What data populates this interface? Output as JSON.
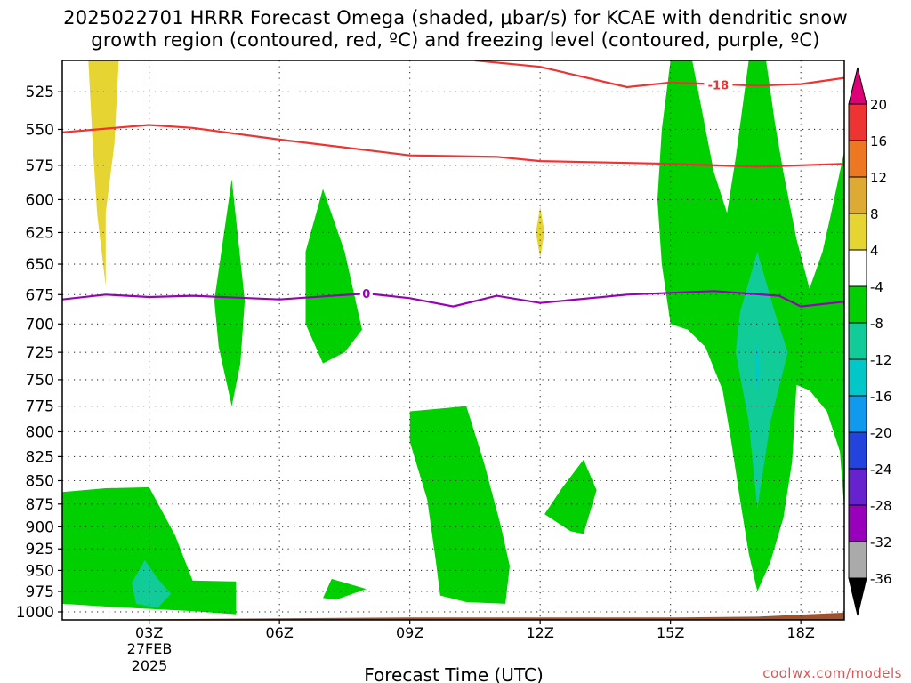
{
  "title_lines": [
    "2025022701 HRRR Forecast Omega (shaded, μbar/s) for KCAE with dendritic snow",
    "growth region (contoured, red, ºC) and freezing level (contoured, purple, ºC)"
  ],
  "xlabel": "Forecast Time (UTC)",
  "credit": "coolwx.com/models",
  "date_lines": [
    "27FEB",
    "2025"
  ],
  "colorbar": {
    "ticks": [
      "20",
      "16",
      "12",
      "8",
      "4",
      "-4",
      "-8",
      "-12",
      "-16",
      "-20",
      "-24",
      "-28",
      "-32",
      "-36"
    ],
    "colors": [
      "#dd0077",
      "#ee3333",
      "#ee7722",
      "#ddaa33",
      "#e6d433",
      "#ffffff",
      "#00d000",
      "#11cc99",
      "#00c8c8",
      "#1199ee",
      "#2244dd",
      "#6622cc",
      "#9900bb",
      "#aaaaaa",
      "#000000"
    ]
  },
  "chart_data": {
    "type": "contour",
    "x_label": "Forecast Time (UTC)",
    "x_ticks": [
      "03Z",
      "06Z",
      "09Z",
      "12Z",
      "15Z",
      "18Z"
    ],
    "x_range_hours_utc": [
      1,
      19
    ],
    "y_ticks": [
      525,
      550,
      575,
      600,
      625,
      650,
      675,
      700,
      725,
      750,
      775,
      800,
      825,
      850,
      875,
      900,
      925,
      950,
      975,
      1000
    ],
    "y_range_mb": [
      1010,
      505
    ],
    "y_scale": "log-pressure",
    "shading_units": "μbar/s",
    "contour_labels": [
      {
        "label": "-18",
        "color": "#ee3333"
      },
      {
        "label": "0",
        "color": "#9900bb"
      }
    ],
    "dendritic_lower_isotherm": [
      [
        1.0,
        552
      ],
      [
        3.0,
        547
      ],
      [
        4.0,
        549
      ],
      [
        6.0,
        557
      ],
      [
        9.0,
        568
      ],
      [
        11.0,
        569
      ],
      [
        12.0,
        572
      ],
      [
        15.0,
        574
      ],
      [
        17.0,
        576
      ],
      [
        19.0,
        574
      ]
    ],
    "dendritic_upper_isotherm": [
      [
        10.5,
        505
      ],
      [
        12.0,
        509
      ],
      [
        14.0,
        522
      ],
      [
        15.0,
        519
      ],
      [
        17.0,
        521
      ],
      [
        18.0,
        520
      ],
      [
        19.0,
        516
      ]
    ],
    "freezing_level": [
      [
        1.0,
        679
      ],
      [
        2.0,
        675
      ],
      [
        3.0,
        677
      ],
      [
        4.0,
        676
      ],
      [
        6.0,
        679
      ],
      [
        8.0,
        674
      ],
      [
        9.0,
        678
      ],
      [
        10.0,
        685
      ],
      [
        11.0,
        676
      ],
      [
        12.0,
        682
      ],
      [
        14.0,
        675
      ],
      [
        16.0,
        672
      ],
      [
        17.5,
        676
      ],
      [
        18.0,
        685
      ],
      [
        19.0,
        681
      ]
    ],
    "terrain_surface_mb": [
      [
        1.0,
        1010
      ],
      [
        6.0,
        1008
      ],
      [
        9.0,
        1007
      ],
      [
        15.0,
        1007
      ],
      [
        17.0,
        1006
      ],
      [
        19.0,
        1001
      ]
    ],
    "shaded_regions": [
      {
        "band": "4 to 8",
        "color": "#e6d433",
        "points": [
          [
            1.6,
            505
          ],
          [
            2.3,
            505
          ],
          [
            2.2,
            560
          ],
          [
            2.0,
            610
          ],
          [
            2.0,
            668
          ],
          [
            1.8,
            610
          ],
          [
            1.7,
            560
          ]
        ]
      },
      {
        "band": "4 to 8",
        "color": "#e6d433",
        "points": [
          [
            12.0,
            605
          ],
          [
            12.1,
            625
          ],
          [
            12.0,
            645
          ],
          [
            11.9,
            625
          ]
        ]
      },
      {
        "band": "-4 to -8",
        "color": "#00d000",
        "points": [
          [
            4.9,
            585
          ],
          [
            5.2,
            680
          ],
          [
            5.1,
            735
          ],
          [
            4.9,
            775
          ],
          [
            4.6,
            720
          ],
          [
            4.5,
            680
          ]
        ]
      },
      {
        "band": "-4 to -8",
        "color": "#00d000",
        "points": [
          [
            7.0,
            592
          ],
          [
            7.5,
            640
          ],
          [
            7.9,
            705
          ],
          [
            7.5,
            725
          ],
          [
            7.0,
            735
          ],
          [
            6.6,
            700
          ],
          [
            6.6,
            640
          ]
        ]
      },
      {
        "band": "-4 to -8",
        "color": "#00d000",
        "points": [
          [
            10.3,
            775
          ],
          [
            10.7,
            830
          ],
          [
            11.1,
            900
          ],
          [
            11.3,
            945
          ],
          [
            11.2,
            990
          ],
          [
            10.3,
            988
          ],
          [
            9.7,
            980
          ],
          [
            9.6,
            940
          ],
          [
            9.4,
            870
          ],
          [
            9.0,
            810
          ],
          [
            9.0,
            780
          ]
        ]
      },
      {
        "band": "-4 to -8",
        "color": "#00d000",
        "points": [
          [
            13.0,
            828
          ],
          [
            13.3,
            860
          ],
          [
            13.0,
            908
          ],
          [
            12.7,
            905
          ],
          [
            12.1,
            886
          ],
          [
            12.5,
            858
          ]
        ]
      },
      {
        "band": "-4 to -8",
        "color": "#00d000",
        "points": [
          [
            1.0,
            862
          ],
          [
            2.0,
            858
          ],
          [
            3.0,
            857
          ],
          [
            3.6,
            910
          ],
          [
            4.0,
            962
          ],
          [
            5.0,
            963
          ],
          [
            5.0,
            1003
          ],
          [
            4.0,
            999
          ],
          [
            2.5,
            995
          ],
          [
            1.0,
            990
          ]
        ]
      },
      {
        "band": "-4 to -8",
        "color": "#00d000",
        "points": [
          [
            7.2,
            960
          ],
          [
            8.0,
            972
          ],
          [
            7.3,
            985
          ],
          [
            7.0,
            983
          ]
        ]
      },
      {
        "band": "-4 to -8",
        "color": "#00d000",
        "points": [
          [
            15.0,
            505
          ],
          [
            15.5,
            505
          ],
          [
            16.0,
            580
          ],
          [
            16.3,
            610
          ],
          [
            16.5,
            570
          ],
          [
            16.8,
            505
          ],
          [
            17.2,
            505
          ],
          [
            17.4,
            545
          ],
          [
            17.6,
            580
          ],
          [
            17.9,
            630
          ],
          [
            18.2,
            670
          ],
          [
            18.5,
            640
          ],
          [
            18.7,
            610
          ],
          [
            19.0,
            565
          ],
          [
            19.0,
            880
          ],
          [
            18.9,
            820
          ],
          [
            18.6,
            780
          ],
          [
            18.2,
            760
          ],
          [
            17.9,
            755
          ],
          [
            17.8,
            830
          ],
          [
            17.6,
            890
          ],
          [
            17.3,
            940
          ],
          [
            17.0,
            975
          ],
          [
            16.8,
            930
          ],
          [
            16.6,
            870
          ],
          [
            16.4,
            810
          ],
          [
            16.2,
            760
          ],
          [
            15.8,
            720
          ],
          [
            15.4,
            705
          ],
          [
            15.0,
            700
          ],
          [
            14.8,
            650
          ],
          [
            14.7,
            600
          ],
          [
            14.8,
            550
          ]
        ]
      },
      {
        "band": "-8 to -12",
        "color": "#11cc99",
        "points": [
          [
            17.0,
            640
          ],
          [
            17.4,
            690
          ],
          [
            17.7,
            725
          ],
          [
            17.3,
            790
          ],
          [
            17.0,
            880
          ],
          [
            16.8,
            790
          ],
          [
            16.5,
            725
          ],
          [
            16.6,
            690
          ]
        ]
      },
      {
        "band": "-8 to -12",
        "color": "#11cc99",
        "points": [
          [
            2.9,
            938
          ],
          [
            3.2,
            960
          ],
          [
            3.5,
            978
          ],
          [
            3.2,
            995
          ],
          [
            2.7,
            990
          ],
          [
            2.6,
            965
          ]
        ]
      },
      {
        "band": "-12 to -16",
        "color": "#00c8c8",
        "points": [
          [
            17.0,
            710
          ],
          [
            17.05,
            740
          ],
          [
            17.0,
            765
          ],
          [
            16.95,
            740
          ]
        ]
      }
    ]
  }
}
